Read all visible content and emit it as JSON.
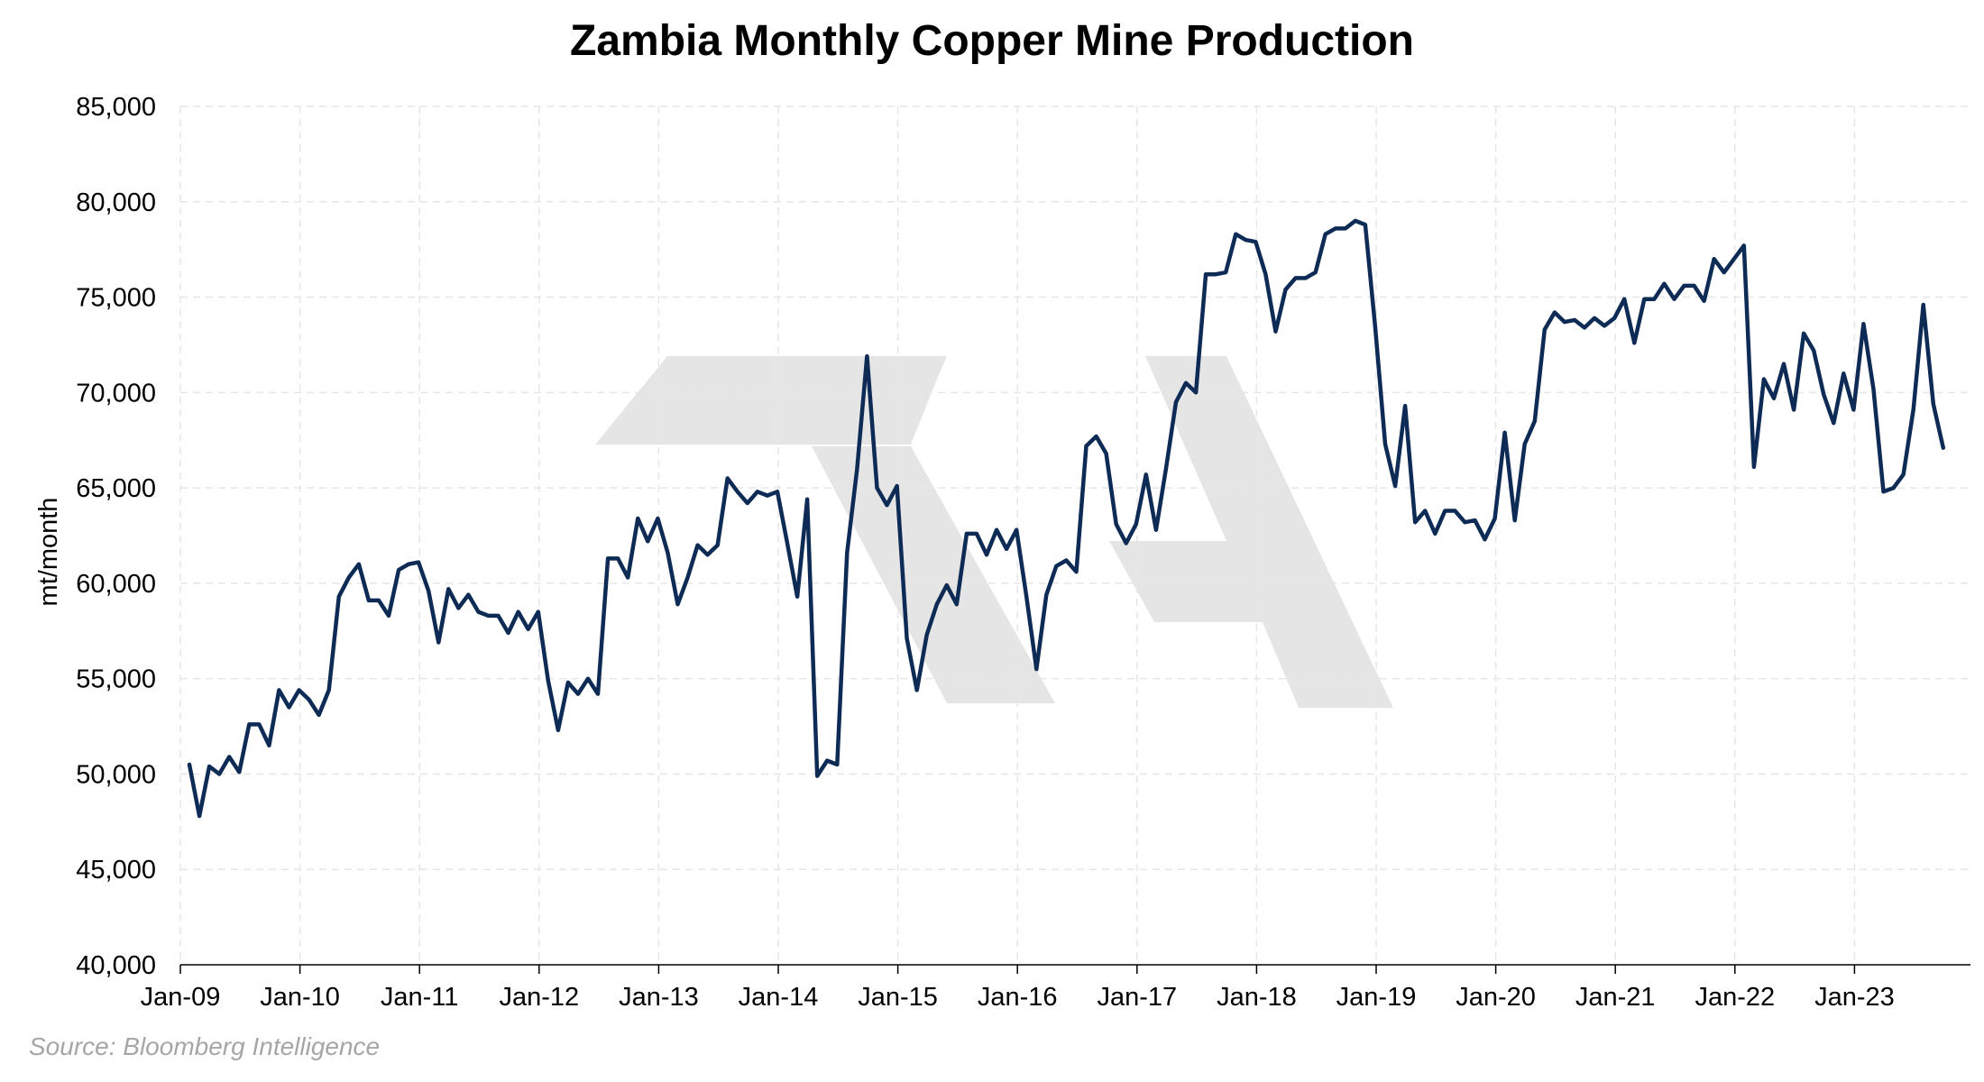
{
  "chart_data": {
    "type": "line",
    "title": "Zambia Monthly Copper Mine Production",
    "xlabel": "",
    "ylabel": "mt/month",
    "ylim": [
      40000,
      85000
    ],
    "yticks": [
      40000,
      45000,
      50000,
      55000,
      60000,
      65000,
      70000,
      75000,
      80000,
      85000
    ],
    "ytick_labels": [
      "40,000",
      "45,000",
      "50,000",
      "55,000",
      "60,000",
      "65,000",
      "70,000",
      "75,000",
      "80,000",
      "85,000"
    ],
    "xtick_labels": [
      "Jan-09",
      "Jan-10",
      "Jan-11",
      "Jan-12",
      "Jan-13",
      "Jan-14",
      "Jan-15",
      "Jan-16",
      "Jan-17",
      "Jan-18",
      "Jan-19",
      "Jan-20",
      "Jan-21",
      "Jan-22",
      "Jan-23"
    ],
    "x_start": "Jan-09",
    "x_end": "Oct-23",
    "grid": true,
    "colors": {
      "line": "#0d2b55",
      "grid": "#e6e6e6",
      "watermark": "#e5e5e5"
    },
    "series": [
      {
        "values": [
          50500,
          47800,
          50400,
          50000,
          50900,
          50100,
          52600,
          52600,
          51500,
          54400,
          53500,
          54400,
          53900,
          53100,
          54400,
          59300,
          60300,
          61000,
          59100,
          59100,
          58300,
          60700,
          61000,
          61100,
          59600,
          56900,
          59700,
          58700,
          59400,
          58500,
          58300,
          58300,
          57400,
          58500,
          57600,
          58500,
          54900,
          52300,
          54800,
          54200,
          55000,
          54200,
          61300,
          61300,
          60300,
          63400,
          62200,
          63400,
          61600,
          58900,
          60300,
          62000,
          61500,
          62000,
          65500,
          64800,
          64200,
          64800,
          64600,
          64800,
          62100,
          59300,
          64400,
          49900,
          50700,
          50500,
          61600,
          66000,
          71900,
          65000,
          64100,
          65100,
          57100,
          54400,
          57300,
          58900,
          59900,
          58900,
          62600,
          62600,
          61500,
          62800,
          61800,
          62800,
          59300,
          55500,
          59400,
          60900,
          61200,
          60600,
          67200,
          67700,
          66800,
          63100,
          62100,
          63100,
          65700,
          62800,
          66000,
          69500,
          70500,
          70000,
          76200,
          76200,
          76300,
          78300,
          78000,
          77900,
          76200,
          73200,
          75400,
          76000,
          76000,
          76300,
          78300,
          78600,
          78600,
          79000,
          78800,
          73400,
          67300,
          65100,
          69300,
          63200,
          63800,
          62600,
          63800,
          63800,
          63200,
          63300,
          62300,
          63400,
          67900,
          63300,
          67300,
          68500,
          73300,
          74200,
          73700,
          73800,
          73400,
          73900,
          73500,
          73900,
          74900,
          72600,
          74900,
          74900,
          75700,
          74900,
          75600,
          75600,
          74800,
          77000,
          76300,
          77000,
          77700,
          66100,
          70700,
          69700,
          71500,
          69100,
          73100,
          72200,
          69900,
          68400,
          71000,
          69100,
          73600,
          70200,
          64800,
          65000,
          65700,
          69100,
          74600,
          69400,
          67100
        ]
      }
    ],
    "source": "Source: Bloomberg Intelligence"
  }
}
